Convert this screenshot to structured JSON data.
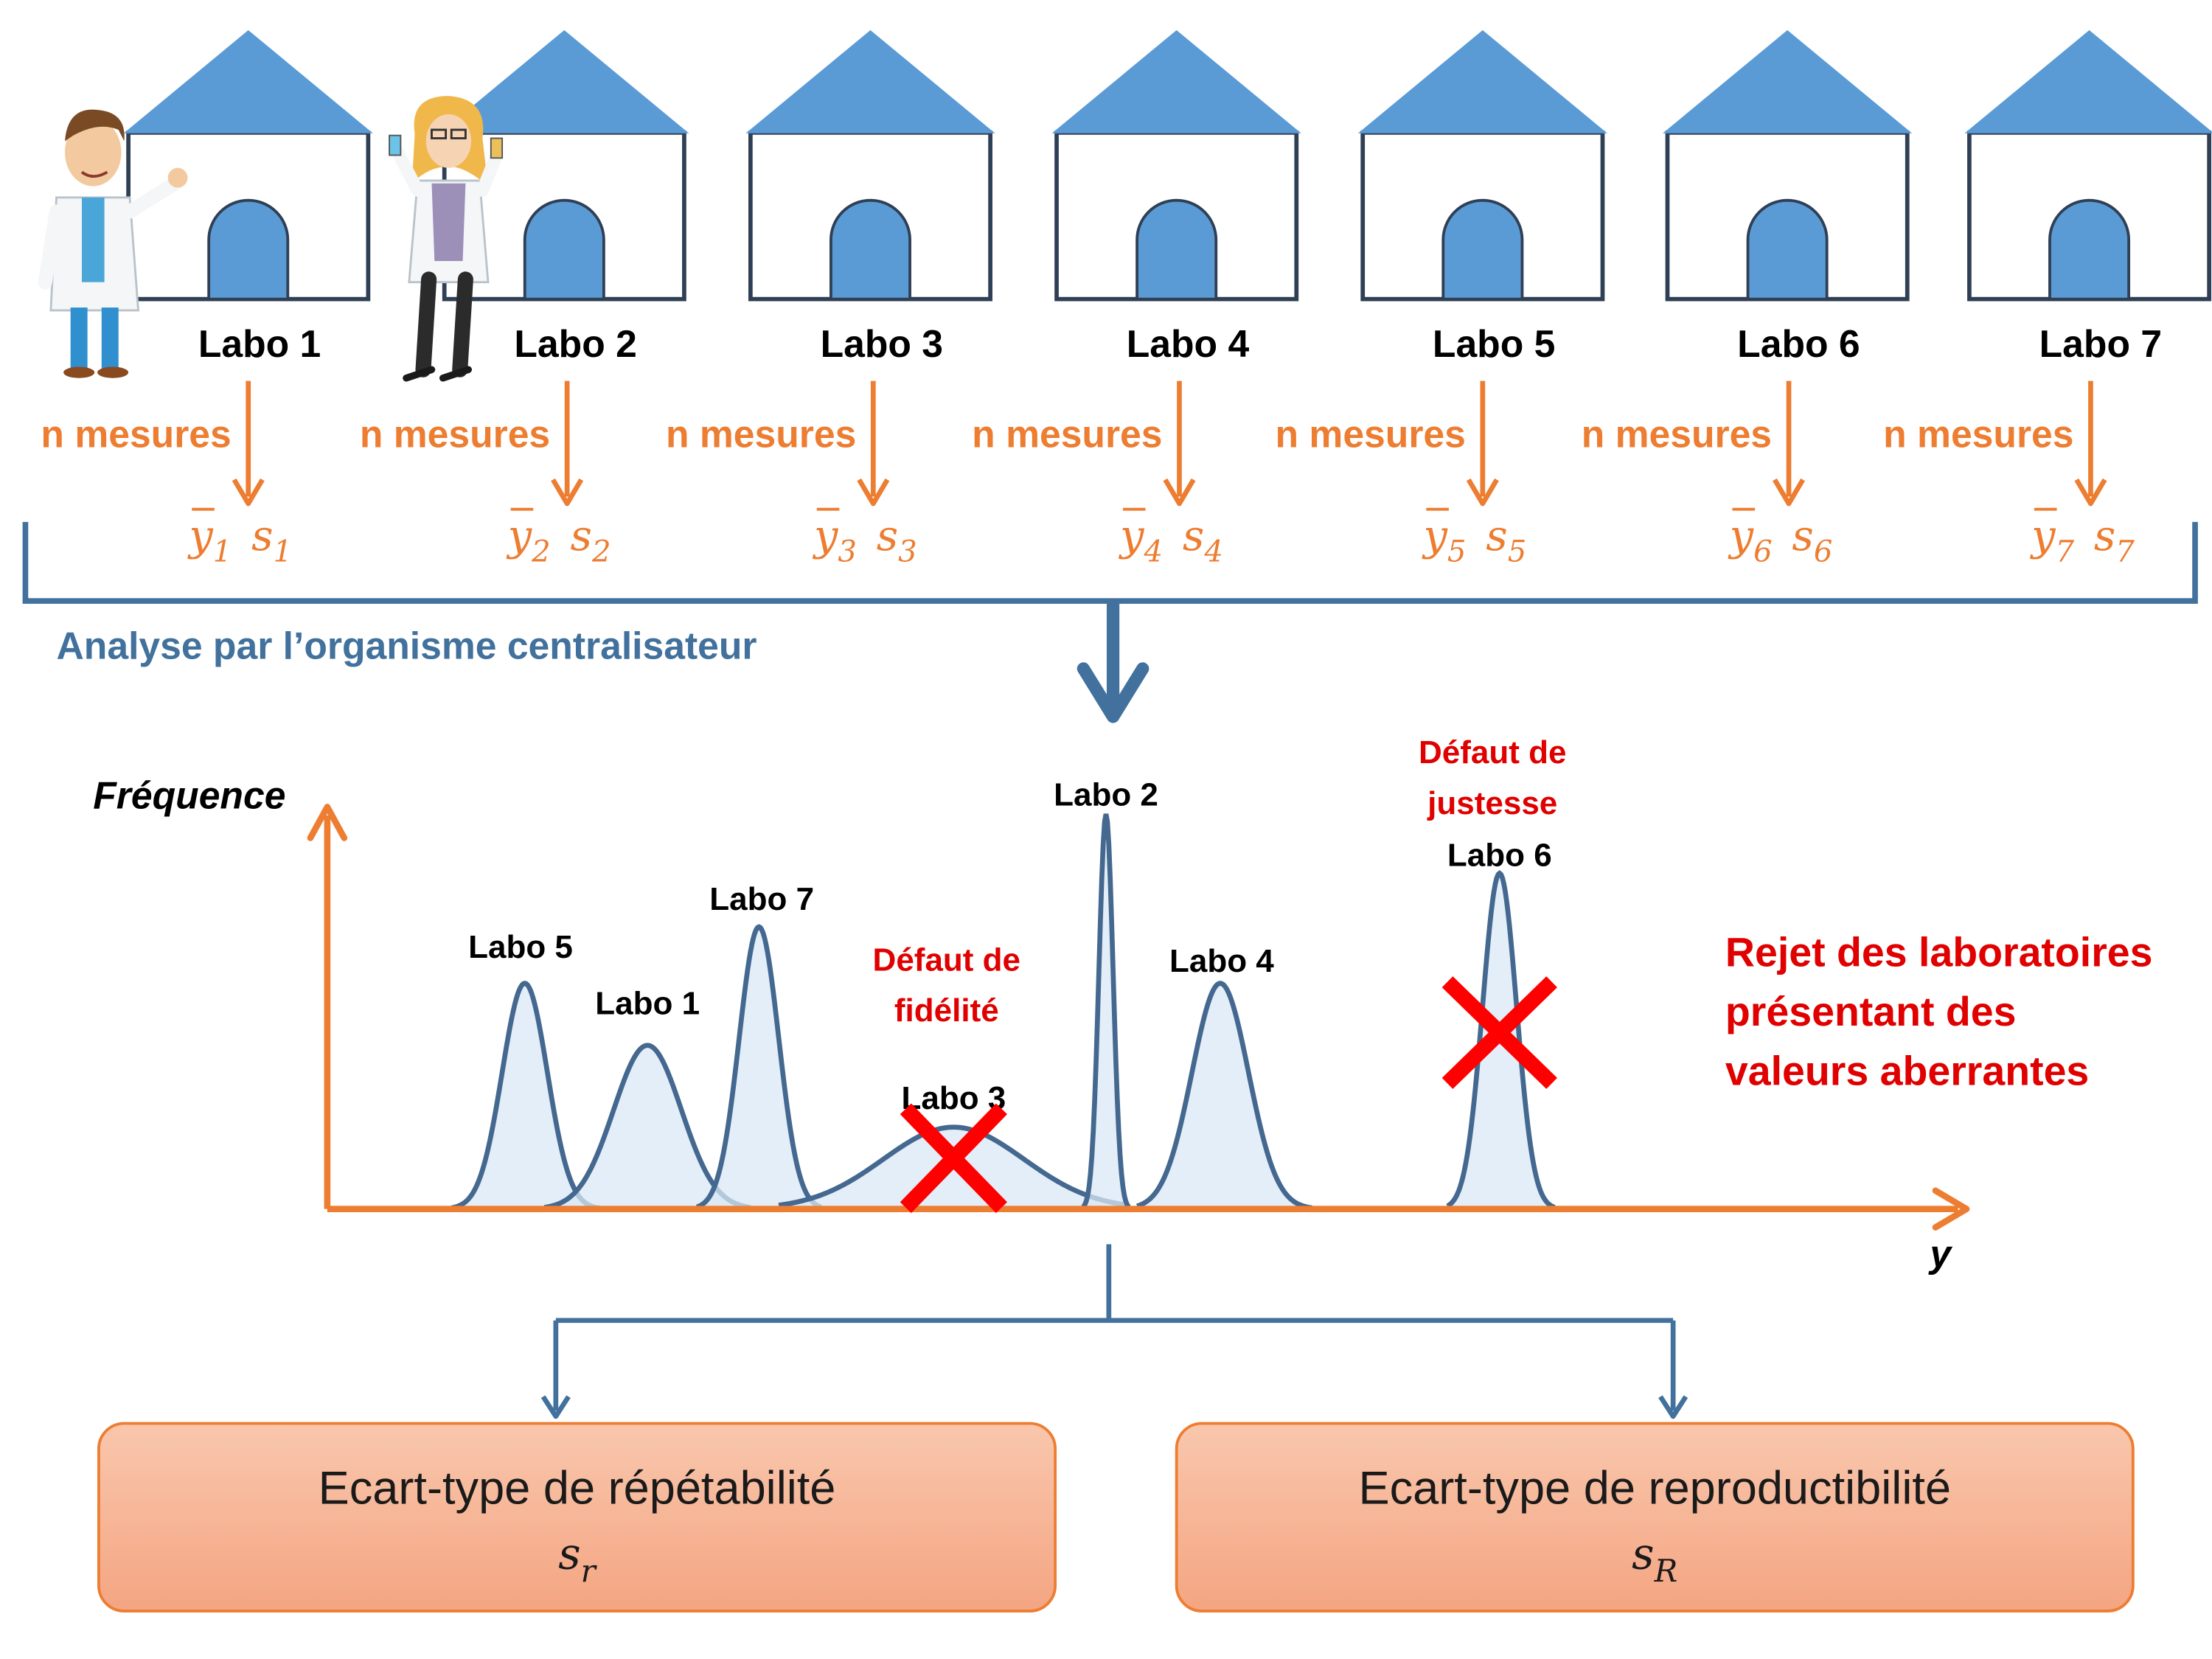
{
  "labs": [
    {
      "label": "Labo 1",
      "mean_var": "y",
      "mean_sub": "1",
      "sd_var": "s",
      "sd_sub": "1"
    },
    {
      "label": "Labo 2",
      "mean_var": "y",
      "mean_sub": "2",
      "sd_var": "s",
      "sd_sub": "2"
    },
    {
      "label": "Labo 3",
      "mean_var": "y",
      "mean_sub": "3",
      "sd_var": "s",
      "sd_sub": "3"
    },
    {
      "label": "Labo 4",
      "mean_var": "y",
      "mean_sub": "4",
      "sd_var": "s",
      "sd_sub": "4"
    },
    {
      "label": "Labo 5",
      "mean_var": "y",
      "mean_sub": "5",
      "sd_var": "s",
      "sd_sub": "5"
    },
    {
      "label": "Labo 6",
      "mean_var": "y",
      "mean_sub": "6",
      "sd_var": "s",
      "sd_sub": "6"
    },
    {
      "label": "Labo 7",
      "mean_var": "y",
      "mean_sub": "7",
      "sd_var": "s",
      "sd_sub": "7"
    }
  ],
  "measure_label": "n mesures",
  "analysis_label": "Analyse par l’organisme centralisateur",
  "axes": {
    "y_label": "Fréquence",
    "x_label": "y"
  },
  "curve_labels": {
    "labo5": "Labo 5",
    "labo1": "Labo 1",
    "labo7": "Labo 7",
    "labo3": "Labo 3",
    "labo2": "Labo 2",
    "labo4": "Labo 4",
    "labo6": "Labo 6"
  },
  "defects": {
    "fidelite": [
      "Défaut de",
      "fidélité"
    ],
    "justesse": [
      "Défaut de",
      "justesse"
    ]
  },
  "rejection": [
    "Rejet des laboratoires",
    "présentant des",
    "valeurs aberrantes"
  ],
  "results": {
    "repeatability": {
      "title": "Ecart-type de répétabilité",
      "symbol": "s",
      "sub": "r"
    },
    "reproducibility": {
      "title": "Ecart-type de reproductibilité",
      "symbol": "s",
      "sub": "R"
    }
  },
  "colors": {
    "house": "#5b9bd5",
    "house_outline": "#2f5597",
    "orange": "#ed7d31",
    "blue_dark": "#41719c",
    "curve_line": "#44688f",
    "curve_fill": "#dae8f5",
    "defect_red": "#e00000",
    "box_top": "#f9c7ad",
    "box_bottom": "#f4a582",
    "box_border": "#ed7d31"
  },
  "icons": {
    "male_scientist": "scientist-male-icon",
    "female_scientist": "scientist-female-icon"
  }
}
